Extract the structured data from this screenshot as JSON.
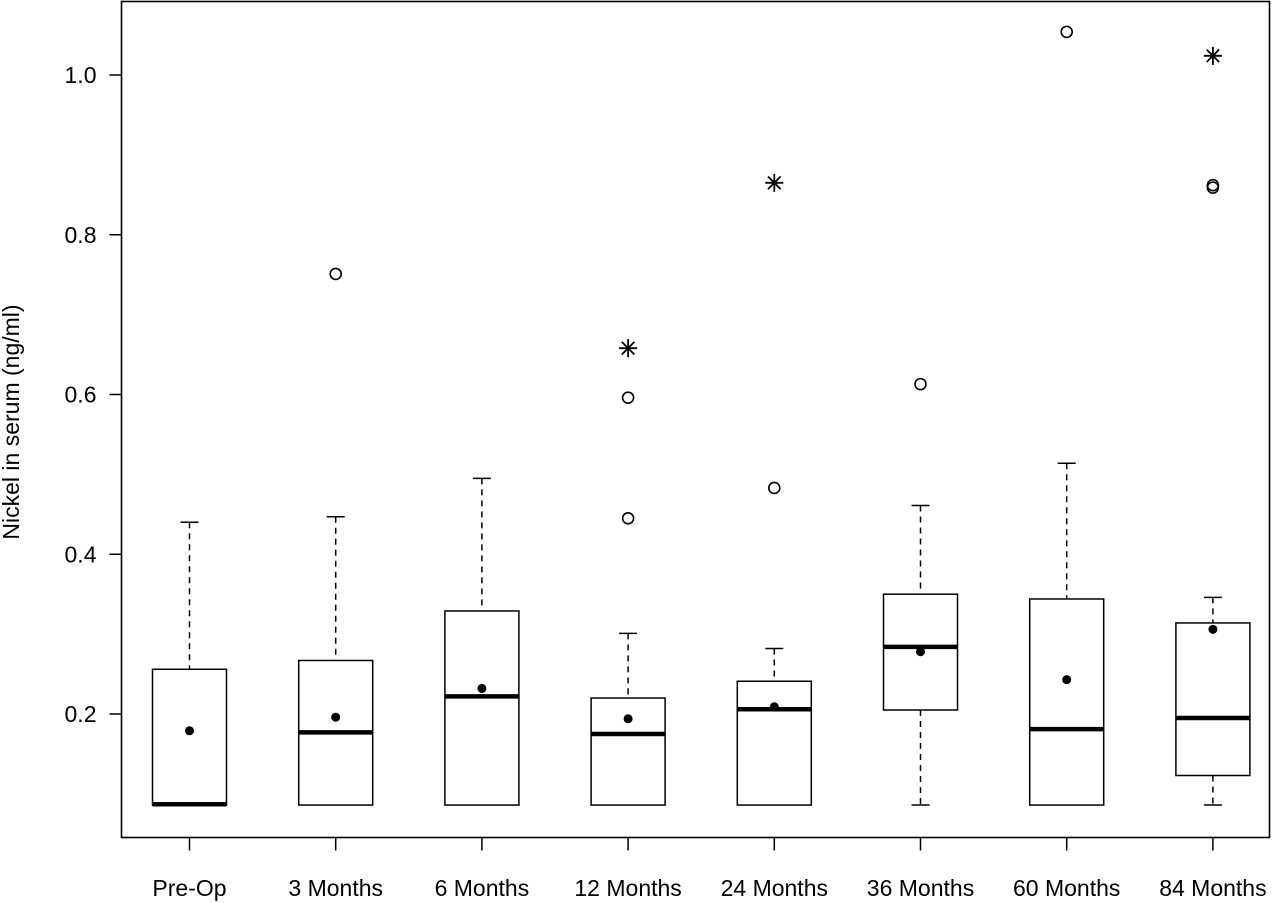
{
  "chart_data": {
    "type": "boxplot",
    "title": "",
    "xlabel": "",
    "ylabel": "Nickel in serum (ng/ml)",
    "ylim": [
      0.07,
      1.085
    ],
    "yticks": [
      0.2,
      0.4,
      0.6,
      0.8,
      1.0
    ],
    "ytick_labels": [
      "0.2",
      "0.4",
      "0.6",
      "0.8",
      "1.0"
    ],
    "grid": false,
    "legend": "none",
    "categories": [
      "Pre-Op",
      "3 Months",
      "6 Months",
      "12 Months",
      "24 Months",
      "36 Months",
      "60 Months",
      "84 Months"
    ],
    "boxes": [
      {
        "category": "Pre-Op",
        "whisker_low": 0.086,
        "q1": 0.086,
        "median": 0.087,
        "q3": 0.256,
        "whisker_high": 0.44,
        "mean": 0.179,
        "outliers": [],
        "extreme_outliers": []
      },
      {
        "category": "3 Months",
        "whisker_low": 0.086,
        "q1": 0.086,
        "median": 0.177,
        "q3": 0.267,
        "whisker_high": 0.447,
        "mean": 0.196,
        "outliers": [
          0.751
        ],
        "extreme_outliers": []
      },
      {
        "category": "6 Months",
        "whisker_low": 0.086,
        "q1": 0.086,
        "median": 0.222,
        "q3": 0.329,
        "whisker_high": 0.495,
        "mean": 0.232,
        "outliers": [],
        "extreme_outliers": []
      },
      {
        "category": "12 Months",
        "whisker_low": 0.086,
        "q1": 0.086,
        "median": 0.175,
        "q3": 0.22,
        "whisker_high": 0.301,
        "mean": 0.194,
        "outliers": [
          0.445,
          0.596
        ],
        "extreme_outliers": [
          0.658
        ]
      },
      {
        "category": "24 Months",
        "whisker_low": 0.086,
        "q1": 0.086,
        "median": 0.206,
        "q3": 0.241,
        "whisker_high": 0.282,
        "mean": 0.209,
        "outliers": [
          0.483
        ],
        "extreme_outliers": [
          0.865
        ]
      },
      {
        "category": "36 Months",
        "whisker_low": 0.086,
        "q1": 0.205,
        "median": 0.284,
        "q3": 0.35,
        "whisker_high": 0.461,
        "mean": 0.278,
        "outliers": [
          0.613
        ],
        "extreme_outliers": []
      },
      {
        "category": "60 Months",
        "whisker_low": 0.086,
        "q1": 0.086,
        "median": 0.181,
        "q3": 0.344,
        "whisker_high": 0.514,
        "mean": 0.243,
        "outliers": [
          1.054
        ],
        "extreme_outliers": []
      },
      {
        "category": "84 Months",
        "whisker_low": 0.086,
        "q1": 0.123,
        "median": 0.195,
        "q3": 0.314,
        "whisker_high": 0.346,
        "mean": 0.306,
        "outliers": [
          0.859,
          0.862
        ],
        "extreme_outliers": [
          1.024
        ]
      }
    ],
    "colors": {
      "stroke": "#000000",
      "background": "#ffffff"
    }
  }
}
